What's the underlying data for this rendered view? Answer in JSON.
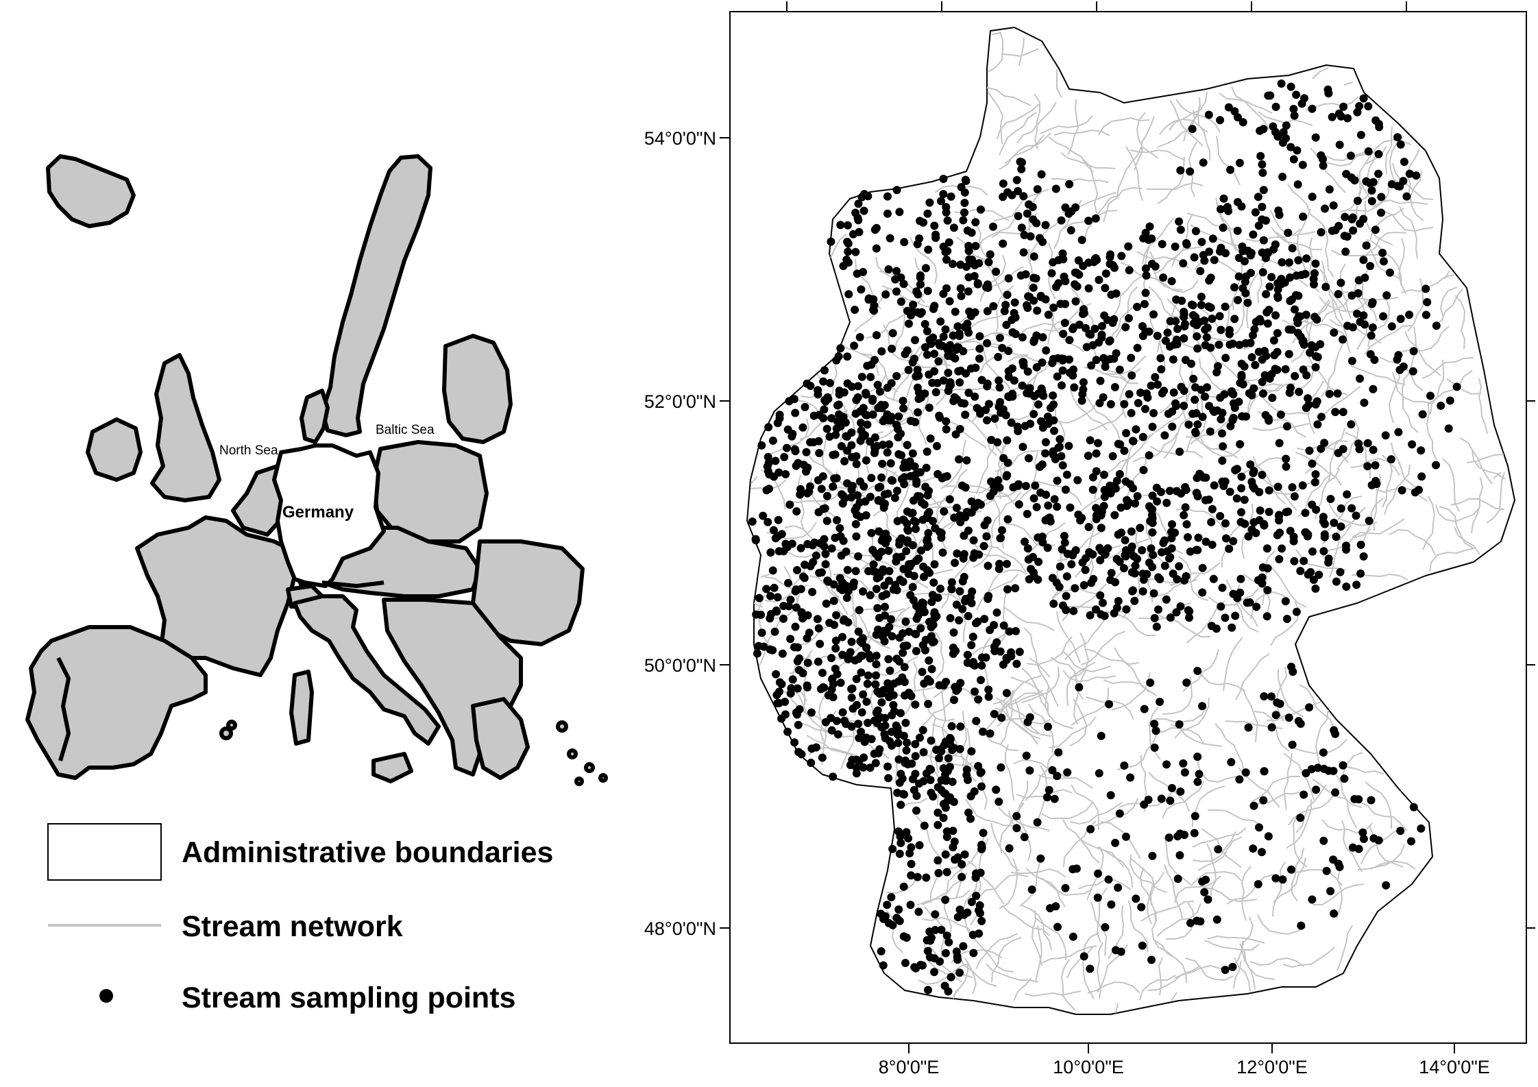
{
  "overview_map": {
    "labels": {
      "north_sea": "North Sea",
      "baltic_sea": "Baltic Sea",
      "germany": "Germany"
    },
    "colors": {
      "land": "#c8c8c8",
      "border": "#000000",
      "germany_fill": "#ffffff"
    }
  },
  "legend": {
    "items": [
      {
        "label": "Administrative boundaries",
        "symbol": "box-outline"
      },
      {
        "label": "Stream network",
        "symbol": "gray-line"
      },
      {
        "label": "Stream sampling points",
        "symbol": "black-dot"
      }
    ]
  },
  "detail_map": {
    "lat_labels": [
      {
        "value": 54,
        "text": "54°0'0\"N"
      },
      {
        "value": 52,
        "text": "52°0'0\"N"
      },
      {
        "value": 50,
        "text": "50°0'0\"N"
      },
      {
        "value": 48,
        "text": "48°0'0\"N"
      }
    ],
    "lon_labels": [
      {
        "value": 8,
        "text": "8°0'0\"E"
      },
      {
        "value": 10,
        "text": "10°0'0\"E"
      },
      {
        "value": 12,
        "text": "12°0'0\"E"
      },
      {
        "value": 14,
        "text": "14°0'0\"E"
      }
    ],
    "colors": {
      "stream": "#c4c4c4",
      "point": "#000000",
      "outline": "#000000"
    }
  }
}
